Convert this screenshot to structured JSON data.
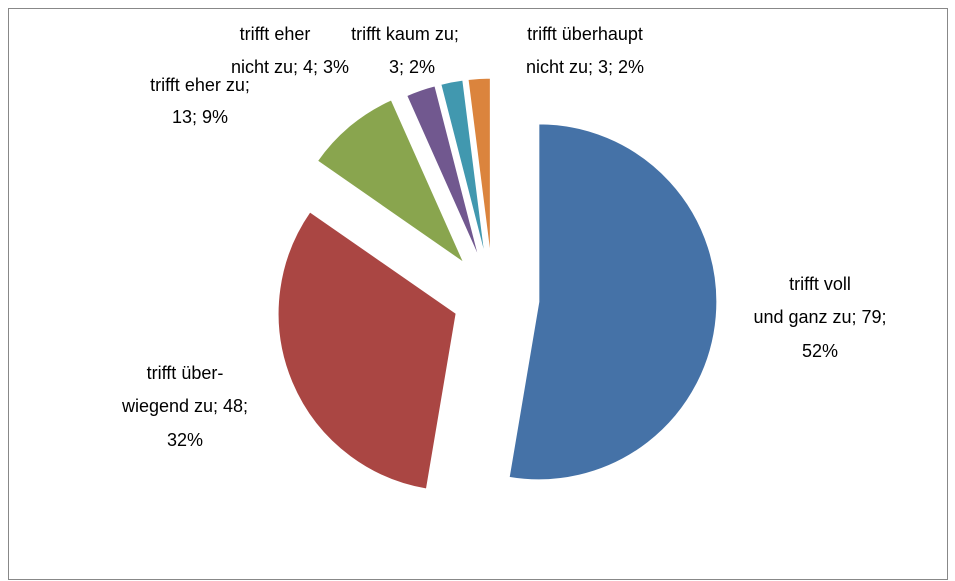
{
  "chart_data": {
    "type": "pie",
    "values": [
      79,
      48,
      13,
      4,
      3,
      3
    ],
    "value_labels": [
      [
        "trifft voll",
        "und ganz zu; 79;",
        "52%"
      ],
      [
        "trifft über-",
        "wiegend zu; 48;",
        "32%"
      ],
      [
        "trifft eher zu;",
        "13; 9%"
      ],
      [
        "trifft eher",
        "nicht zu; 4; 3%"
      ],
      [
        "trifft kaum zu;",
        "3; 2%"
      ],
      [
        "trifft überhaupt",
        "nicht zu; 3; 2%"
      ]
    ],
    "colors": [
      "#4572a7",
      "#aa4643",
      "#89a54e",
      "#71588f",
      "#4198af",
      "#db843d"
    ],
    "exploded": true
  }
}
